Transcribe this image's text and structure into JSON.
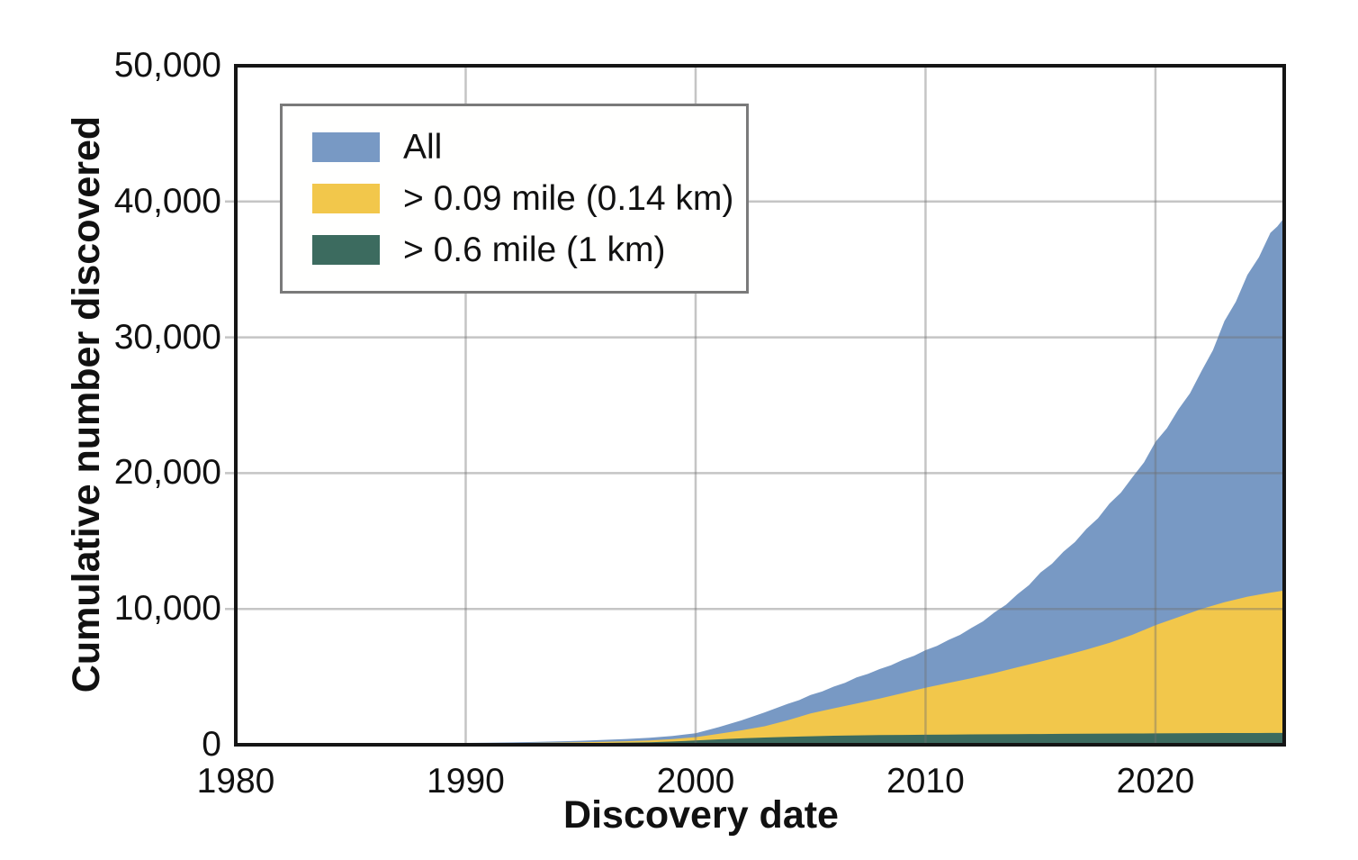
{
  "chart_data": {
    "type": "area",
    "xlabel": "Discovery date",
    "ylabel": "Cumulative number discovered",
    "xlim": [
      1980,
      2025.6
    ],
    "ylim": [
      0,
      50000
    ],
    "grid": true,
    "legend_position": "upper-left",
    "x": [
      1980,
      1981,
      1982,
      1983,
      1984,
      1985,
      1986,
      1987,
      1988,
      1989,
      1990,
      1991,
      1992,
      1993,
      1994,
      1995,
      1996,
      1997,
      1998,
      1999,
      2000,
      2001,
      2002,
      2003,
      2004,
      2005,
      2006,
      2007,
      2008,
      2009,
      2010,
      2011,
      2012,
      2013,
      2014,
      2015,
      2016,
      2017,
      2018,
      2019,
      2020,
      2021,
      2022,
      2023,
      2024,
      2025,
      2025.6
    ],
    "series": [
      {
        "name": "All",
        "color": "#7899C4",
        "values": [
          57,
          60,
          64,
          70,
          76,
          83,
          90,
          99,
          110,
          121,
          134,
          152,
          175,
          205,
          245,
          295,
          355,
          425,
          510,
          650,
          840,
          1290,
          1800,
          2380,
          3010,
          3660,
          4280,
          4960,
          5570,
          6240,
          6960,
          7720,
          8600,
          9750,
          11080,
          12680,
          14220,
          15900,
          17750,
          19700,
          22300,
          24700,
          27500,
          31200,
          34600,
          37700,
          38800
        ]
      },
      {
        "name": "> 0.09 mile (0.14 km)",
        "color": "#F2C74B",
        "values": [
          35,
          40,
          45,
          50,
          55,
          61,
          68,
          75,
          82,
          91,
          100,
          112,
          125,
          141,
          160,
          185,
          215,
          258,
          310,
          420,
          560,
          800,
          1060,
          1360,
          1800,
          2300,
          2680,
          3040,
          3400,
          3800,
          4200,
          4550,
          4900,
          5280,
          5700,
          6120,
          6550,
          7000,
          7500,
          8100,
          8800,
          9400,
          10000,
          10500,
          10900,
          11200,
          11350
        ]
      },
      {
        "name": "> 0.6 mile (1 km)",
        "color": "#3C6B5F",
        "values": [
          25,
          28,
          32,
          36,
          40,
          44,
          48,
          53,
          58,
          64,
          70,
          77,
          85,
          94,
          105,
          118,
          135,
          158,
          185,
          240,
          310,
          400,
          470,
          530,
          580,
          625,
          660,
          688,
          708,
          724,
          738,
          750,
          762,
          772,
          782,
          792,
          802,
          812,
          822,
          830,
          838,
          846,
          853,
          859,
          864,
          868,
          871
        ]
      }
    ],
    "xticks": [
      {
        "v": 1980,
        "label": "1980"
      },
      {
        "v": 1990,
        "label": "1990"
      },
      {
        "v": 2000,
        "label": "2000"
      },
      {
        "v": 2010,
        "label": "2010"
      },
      {
        "v": 2020,
        "label": "2020"
      }
    ],
    "yticks": [
      {
        "v": 0,
        "label": "0"
      },
      {
        "v": 10000,
        "label": "10,000"
      },
      {
        "v": 20000,
        "label": "20,000"
      },
      {
        "v": 30000,
        "label": "30,000"
      },
      {
        "v": 40000,
        "label": "40,000"
      },
      {
        "v": 50000,
        "label": "50,000"
      }
    ],
    "colors": {
      "grid": "#c9c9c9",
      "spine": "#151515",
      "text": "#111111",
      "background": "#ffffff"
    }
  }
}
